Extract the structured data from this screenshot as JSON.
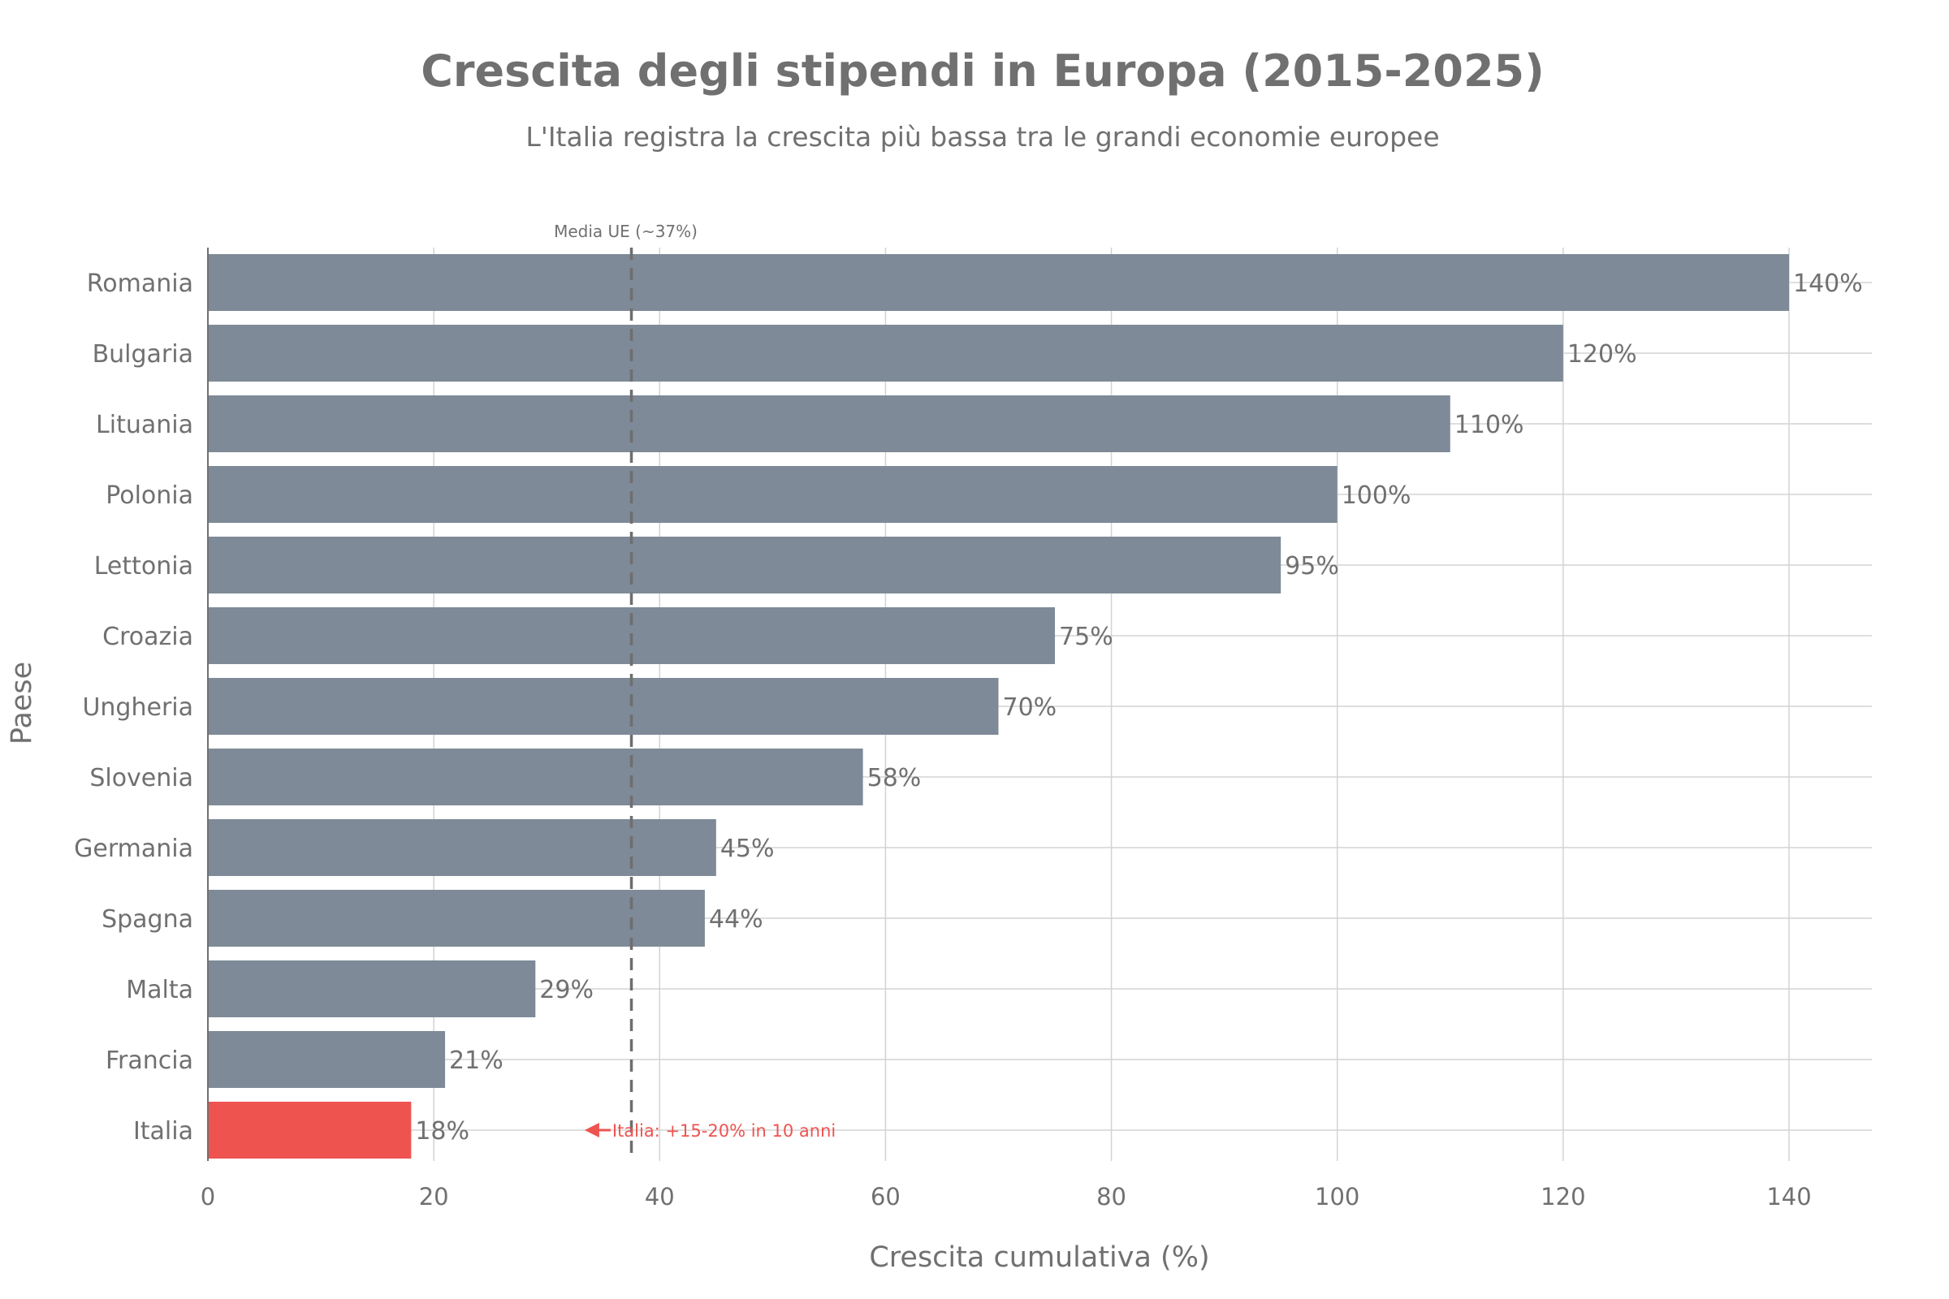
{
  "chart_data": {
    "type": "bar",
    "orientation": "horizontal",
    "title": "Crescita degli stipendi in Europa (2015-2025)",
    "subtitle": "L'Italia registra la crescita più bassa tra le grandi economie europee",
    "xlabel": "Crescita cumulativa (%)",
    "ylabel": "Paese",
    "xlim": [
      0,
      147
    ],
    "xticks": [
      0,
      20,
      40,
      60,
      80,
      100,
      120,
      140
    ],
    "grid": true,
    "categories": [
      "Romania",
      "Bulgaria",
      "Lituania",
      "Polonia",
      "Lettonia",
      "Croazia",
      "Ungheria",
      "Slovenia",
      "Germania",
      "Spagna",
      "Malta",
      "Francia",
      "Italia"
    ],
    "values": [
      140,
      120,
      110,
      100,
      95,
      75,
      70,
      58,
      45,
      44,
      29,
      21,
      18
    ],
    "data_labels": [
      "140%",
      "120%",
      "110%",
      "100%",
      "95%",
      "75%",
      "70%",
      "58%",
      "45%",
      "44%",
      "29%",
      "21%",
      "18%"
    ],
    "bar_color": "#7e8a97",
    "highlight": {
      "category": "Italia",
      "color": "#ef5350"
    },
    "reference_line": {
      "x": 37.5,
      "label": "Media UE (~37%)",
      "style": "dashed",
      "color": "#6e6e6e"
    },
    "annotation": {
      "text": "Italia: +15-20% in 10 anni",
      "category": "Italia",
      "x": 33.5,
      "arrow": "left",
      "color": "#ef5350"
    }
  }
}
